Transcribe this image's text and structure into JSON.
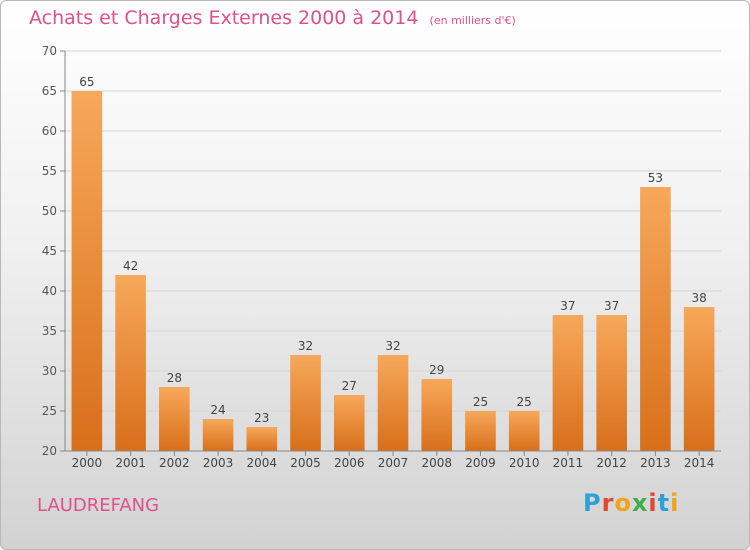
{
  "header": {
    "title": "Achats et Charges Externes 2000 à 2014",
    "unit": "(en milliers d'€)"
  },
  "footer": {
    "commune": "LAUDREFANG",
    "logo_letters": [
      "P",
      "r",
      "o",
      "x",
      "i",
      "t",
      "i"
    ]
  },
  "colors": {
    "bar_light": "#f7a85a",
    "bar_dark": "#d86f1a",
    "title": "#e0508a",
    "grid": "#d4d4d4"
  },
  "chart_data": {
    "type": "bar",
    "title": "Achats et Charges Externes 2000 à 2014",
    "subtitle": "(en milliers d'€)",
    "xlabel": "",
    "ylabel": "",
    "ylim": [
      20,
      70
    ],
    "yticks": [
      20,
      25,
      30,
      35,
      40,
      45,
      50,
      55,
      60,
      65,
      70
    ],
    "grid": true,
    "categories": [
      "2000",
      "2001",
      "2002",
      "2003",
      "2004",
      "2005",
      "2006",
      "2007",
      "2008",
      "2009",
      "2010",
      "2011",
      "2012",
      "2013",
      "2014"
    ],
    "values": [
      65,
      42,
      28,
      24,
      23,
      32,
      27,
      32,
      29,
      25,
      25,
      37,
      37,
      53,
      38
    ]
  }
}
